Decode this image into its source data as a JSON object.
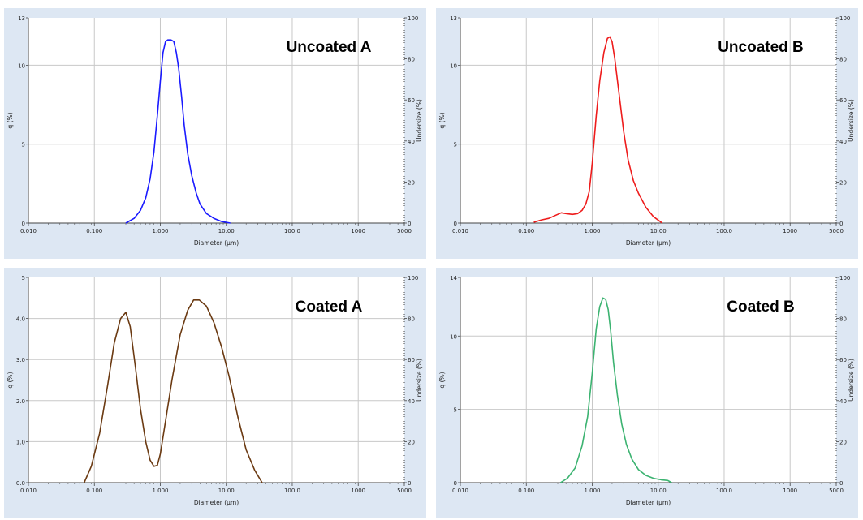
{
  "chart_data": [
    {
      "type": "line",
      "title": "Uncoated A",
      "xlabel": "Diameter (µm)",
      "ylabel": "q (%)",
      "y2label": "Undersize (%)",
      "xscale": "log",
      "xlim": [
        0.01,
        5000
      ],
      "ylim": [
        0,
        13
      ],
      "y2lim": [
        0,
        100
      ],
      "xticks": [
        0.01,
        0.1,
        1,
        10,
        100,
        1000,
        5000
      ],
      "xtick_labels": [
        "0.010",
        "0.100",
        "1.000",
        "10.00",
        "100.0",
        "1000",
        "5000"
      ],
      "yticks": [
        0,
        5,
        10,
        13
      ],
      "ytick_labels": [
        "0",
        "5",
        "10",
        "13"
      ],
      "y2ticks": [
        0,
        20,
        40,
        60,
        80,
        100
      ],
      "y2tick_labels": [
        "0",
        "20",
        "40",
        "60",
        "80",
        "100"
      ],
      "grid": true,
      "color": "#1a1aff",
      "x": [
        0.3,
        0.4,
        0.5,
        0.6,
        0.7,
        0.8,
        0.9,
        1.0,
        1.1,
        1.2,
        1.3,
        1.45,
        1.6,
        1.75,
        1.9,
        2.1,
        2.3,
        2.6,
        3.0,
        3.5,
        4.0,
        5.0,
        6.5,
        8.5,
        11.5
      ],
      "y": [
        0,
        0.3,
        0.8,
        1.6,
        2.8,
        4.5,
        6.8,
        9.0,
        10.8,
        11.5,
        11.6,
        11.6,
        11.5,
        10.8,
        9.8,
        8.0,
        6.2,
        4.4,
        3.0,
        1.9,
        1.2,
        0.6,
        0.3,
        0.1,
        0
      ]
    },
    {
      "type": "line",
      "title": "Uncoated B",
      "xlabel": "Diameter (µm)",
      "ylabel": "q (%)",
      "y2label": "Undersize (%)",
      "xscale": "log",
      "xlim": [
        0.01,
        5000
      ],
      "ylim": [
        0,
        13
      ],
      "y2lim": [
        0,
        100
      ],
      "xticks": [
        0.01,
        0.1,
        1,
        10,
        100,
        1000,
        5000
      ],
      "xtick_labels": [
        "0.010",
        "0.100",
        "1.000",
        "10.00",
        "100.0",
        "1000",
        "5000"
      ],
      "yticks": [
        0,
        5,
        10,
        13
      ],
      "ytick_labels": [
        "0",
        "5",
        "10",
        "13"
      ],
      "y2ticks": [
        0,
        20,
        40,
        60,
        80,
        100
      ],
      "y2tick_labels": [
        "0",
        "20",
        "40",
        "60",
        "80",
        "100"
      ],
      "grid": true,
      "color": "#ee1c1c",
      "x": [
        0.13,
        0.17,
        0.22,
        0.28,
        0.34,
        0.4,
        0.5,
        0.6,
        0.7,
        0.8,
        0.9,
        1.0,
        1.15,
        1.3,
        1.5,
        1.7,
        1.85,
        2.0,
        2.2,
        2.5,
        3.0,
        3.5,
        4.2,
        5.0,
        6.5,
        8.5,
        11.5
      ],
      "y": [
        0.05,
        0.2,
        0.3,
        0.5,
        0.65,
        0.6,
        0.55,
        0.6,
        0.8,
        1.2,
        2.0,
        3.8,
        6.8,
        9.0,
        10.8,
        11.7,
        11.8,
        11.5,
        10.4,
        8.5,
        5.8,
        4.0,
        2.7,
        1.9,
        1.0,
        0.4,
        0
      ]
    },
    {
      "type": "line",
      "title": "Coated A",
      "xlabel": "Diameter (µm)",
      "ylabel": "q (%)",
      "y2label": "Undersize (%)",
      "xscale": "log",
      "xlim": [
        0.01,
        5000
      ],
      "ylim": [
        0,
        5
      ],
      "y2lim": [
        0,
        100
      ],
      "xticks": [
        0.01,
        0.1,
        1,
        10,
        100,
        1000,
        5000
      ],
      "xtick_labels": [
        "0.010",
        "0.100",
        "1.000",
        "10.00",
        "100.0",
        "1000",
        "5000"
      ],
      "yticks": [
        0,
        1,
        2,
        3,
        4,
        5
      ],
      "ytick_labels": [
        "0.0",
        "1.0",
        "2.0",
        "3.0",
        "4.0",
        "5"
      ],
      "y2ticks": [
        0,
        20,
        40,
        60,
        80,
        100
      ],
      "y2tick_labels": [
        "0",
        "20",
        "40",
        "60",
        "80",
        "100"
      ],
      "grid": true,
      "color": "#6b3a12",
      "x": [
        0.07,
        0.09,
        0.12,
        0.16,
        0.2,
        0.25,
        0.3,
        0.35,
        0.42,
        0.5,
        0.6,
        0.7,
        0.8,
        0.9,
        1.0,
        1.2,
        1.5,
        2.0,
        2.6,
        3.2,
        3.9,
        5.0,
        6.5,
        8.5,
        11,
        15,
        20,
        27,
        35
      ],
      "y": [
        0,
        0.4,
        1.2,
        2.4,
        3.4,
        4.0,
        4.15,
        3.8,
        2.8,
        1.8,
        1.0,
        0.55,
        0.4,
        0.42,
        0.7,
        1.5,
        2.5,
        3.6,
        4.2,
        4.45,
        4.45,
        4.3,
        3.9,
        3.3,
        2.6,
        1.6,
        0.8,
        0.3,
        0
      ]
    },
    {
      "type": "line",
      "title": "Coated B",
      "xlabel": "Diameter (µm)",
      "ylabel": "q (%)",
      "y2label": "Undersize (%)",
      "xscale": "log",
      "xlim": [
        0.01,
        5000
      ],
      "ylim": [
        0,
        14
      ],
      "y2lim": [
        0,
        100
      ],
      "xticks": [
        0.01,
        0.1,
        1,
        10,
        100,
        1000,
        5000
      ],
      "xtick_labels": [
        "0.010",
        "0.100",
        "1.000",
        "10.00",
        "100.0",
        "1000",
        "5000"
      ],
      "yticks": [
        0,
        5,
        10,
        14
      ],
      "ytick_labels": [
        "0",
        "5",
        "10",
        "14"
      ],
      "y2ticks": [
        0,
        20,
        40,
        60,
        80,
        100
      ],
      "y2tick_labels": [
        "0",
        "20",
        "40",
        "60",
        "80",
        "100"
      ],
      "grid": true,
      "color": "#3cb371",
      "x": [
        0.33,
        0.42,
        0.55,
        0.7,
        0.85,
        1.0,
        1.15,
        1.3,
        1.45,
        1.6,
        1.75,
        1.9,
        2.1,
        2.4,
        2.8,
        3.3,
        4.0,
        5.0,
        6.5,
        8.5,
        11,
        14,
        16
      ],
      "y": [
        0,
        0.3,
        1.0,
        2.5,
        4.5,
        7.5,
        10.5,
        12.0,
        12.6,
        12.5,
        11.8,
        10.4,
        8.2,
        6.0,
        4.0,
        2.6,
        1.6,
        0.9,
        0.5,
        0.3,
        0.2,
        0.15,
        0
      ]
    }
  ]
}
